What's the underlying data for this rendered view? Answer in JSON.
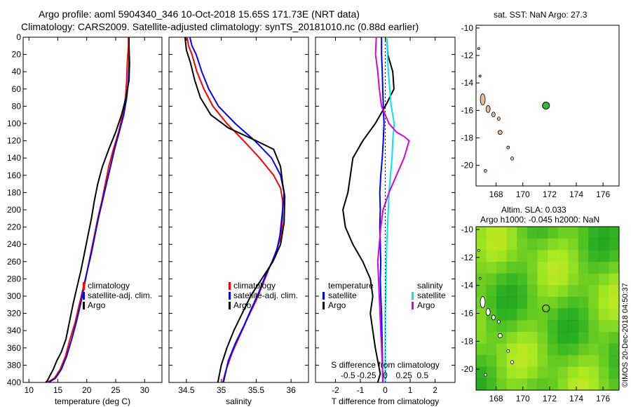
{
  "header": {
    "title_line1": "Argo profile: aoml 5904340_346 10-Oct-2018 15.65S 171.73E (NRT data)",
    "title_line2": "Climatology: CARS2009. Satellite-adjusted climatology: synTS_20181010.nc (0.88d earlier)"
  },
  "map_top": {
    "title": "sat. SST: NaN Argo: 27.3"
  },
  "map_bottom": {
    "title1": "Altim. SLA: 0.033",
    "title2": "Argo h1000: -0.045 h2000: NaN"
  },
  "watermark": "©IMOS 20-Dec-2018 04:50:37",
  "colors": {
    "climatology": "#ff0000",
    "satellite": "#0000ff",
    "argo": "#000000",
    "sat_sal": "#00e5ee",
    "clim_sal": "#dd00dd",
    "land": "#e8b898",
    "float_marker": "#33bb33"
  },
  "chart_data": [
    {
      "type": "line",
      "panel": "temperature",
      "xlabel": "temperature (deg C)",
      "xlim": [
        9,
        33
      ],
      "ylim": [
        400,
        0
      ],
      "xticks": [
        10,
        15,
        20,
        25,
        30
      ],
      "yticks": [
        0,
        20,
        40,
        60,
        80,
        100,
        120,
        140,
        160,
        180,
        200,
        220,
        240,
        260,
        280,
        300,
        320,
        340,
        360,
        380,
        400
      ],
      "legend": [
        "climatology",
        "satellite-adj. clim.",
        "Argo"
      ],
      "series": [
        {
          "name": "climatology",
          "x": [
            27.2,
            27.2,
            27.0,
            26.9,
            26.7,
            26.2,
            25.5,
            24.6,
            23.8,
            23.2,
            22.6,
            21.9,
            21.3,
            20.7,
            20.1,
            19.4,
            18.7,
            18.0,
            17.1,
            16.3,
            15.4,
            14.4,
            13.2
          ],
          "y": [
            0,
            10,
            30,
            50,
            70,
            90,
            110,
            130,
            150,
            170,
            190,
            210,
            230,
            250,
            270,
            290,
            310,
            330,
            350,
            370,
            385,
            395,
            400
          ]
        },
        {
          "name": "satellite",
          "x": [
            27.3,
            27.3,
            27.3,
            27.2,
            26.9,
            26.4,
            25.6,
            24.8,
            24.1,
            23.4,
            22.7,
            22.0,
            21.4,
            20.8,
            20.1,
            19.5,
            18.9,
            18.2,
            17.4,
            16.5,
            15.6,
            14.6,
            13.4
          ],
          "y": [
            0,
            10,
            30,
            50,
            70,
            90,
            110,
            130,
            150,
            170,
            190,
            210,
            230,
            250,
            270,
            290,
            310,
            330,
            350,
            370,
            385,
            395,
            400
          ]
        },
        {
          "name": "Argo",
          "x": [
            27.3,
            27.3,
            27.4,
            27.3,
            26.8,
            26.0,
            25.0,
            23.8,
            22.7,
            21.9,
            21.3,
            20.8,
            20.2,
            19.6,
            19.0,
            18.3,
            17.6,
            17.0,
            16.4,
            15.6,
            14.8,
            14.2,
            13.4,
            13.2,
            12.9
          ],
          "y": [
            0,
            10,
            30,
            50,
            70,
            90,
            110,
            130,
            150,
            170,
            190,
            210,
            230,
            250,
            270,
            290,
            310,
            330,
            350,
            365,
            375,
            385,
            395,
            398,
            400
          ]
        }
      ]
    },
    {
      "type": "line",
      "panel": "salinity",
      "xlabel": "salinity",
      "xlim": [
        34.25,
        36.25
      ],
      "ylim": [
        400,
        0
      ],
      "xticks": [
        34.5,
        35,
        35.5,
        36
      ],
      "tick_labels": [
        "34.5",
        "35",
        "35.5",
        "36"
      ],
      "legend": [
        "climatology",
        "satellite-adj. clim.",
        "Argo"
      ],
      "series": [
        {
          "name": "climatology",
          "x": [
            34.51,
            34.53,
            34.58,
            34.65,
            34.75,
            34.88,
            35.08,
            35.32,
            35.55,
            35.75,
            35.85,
            35.88,
            35.88,
            35.87,
            35.84,
            35.78,
            35.7,
            35.6,
            35.5,
            35.38,
            35.27,
            35.16,
            35.07,
            35.02
          ],
          "y": [
            0,
            10,
            20,
            40,
            60,
            80,
            100,
            120,
            140,
            160,
            175,
            190,
            205,
            220,
            235,
            250,
            265,
            285,
            305,
            325,
            345,
            365,
            385,
            400
          ]
        },
        {
          "name": "satellite",
          "x": [
            34.55,
            34.58,
            34.64,
            34.72,
            34.82,
            34.96,
            35.2,
            35.48,
            35.72,
            35.85,
            35.9,
            35.88,
            35.86,
            35.84,
            35.8,
            35.73,
            35.64,
            35.54,
            35.43,
            35.32,
            35.2,
            35.1,
            35.03
          ],
          "y": [
            0,
            10,
            20,
            40,
            60,
            80,
            100,
            120,
            140,
            160,
            180,
            200,
            215,
            230,
            245,
            260,
            275,
            295,
            315,
            335,
            355,
            375,
            400
          ]
        },
        {
          "name": "Argo",
          "x": [
            34.48,
            34.5,
            34.56,
            34.62,
            34.7,
            34.85,
            35.1,
            35.5,
            35.75,
            35.85,
            35.88,
            35.91,
            35.9,
            35.85,
            35.74,
            35.58,
            35.42,
            35.3,
            35.18,
            35.08,
            35.0,
            34.95
          ],
          "y": [
            0,
            15,
            30,
            50,
            70,
            90,
            105,
            120,
            130,
            150,
            170,
            185,
            215,
            240,
            260,
            280,
            300,
            320,
            340,
            360,
            380,
            400
          ]
        }
      ]
    },
    {
      "type": "line",
      "panel": "difference",
      "xlabel": "T difference from climatology",
      "top_label": "S difference from climatology",
      "xlim": [
        -2.8,
        2.8
      ],
      "ylim": [
        400,
        0
      ],
      "xticks": [
        -2,
        -1,
        0,
        1,
        2
      ],
      "s_ticks": [
        -0.5,
        -0.25,
        0,
        0.25,
        0.5
      ],
      "s_tick_labels": [
        "-0.5",
        "-0.25",
        "0",
        "0.25",
        "0.5"
      ],
      "legend_temperature": [
        "temperature",
        "satellite",
        "Argo"
      ],
      "legend_salinity": [
        "salinity",
        "satellite",
        "Argo"
      ],
      "series": [
        {
          "name": "T satellite",
          "x": [
            -0.15,
            -0.15,
            -0.12,
            -0.1,
            -0.08,
            -0.05,
            -0.08,
            -0.12,
            -0.18,
            -0.22,
            -0.2,
            -0.22,
            -0.2,
            -0.18,
            -0.2,
            -0.18,
            -0.15,
            -0.12,
            -0.1
          ],
          "y": [
            0,
            20,
            40,
            60,
            80,
            100,
            120,
            140,
            160,
            180,
            200,
            220,
            240,
            260,
            280,
            300,
            320,
            360,
            400
          ]
        },
        {
          "name": "T Argo",
          "x": [
            0.05,
            0.1,
            0.3,
            0.35,
            0.0,
            -0.4,
            -0.9,
            -1.3,
            -1.4,
            -1.5,
            -1.7,
            -1.6,
            -1.3,
            -0.9,
            -0.6,
            -0.5,
            -0.6,
            -0.5,
            -0.4,
            -0.3,
            -0.2,
            -0.3
          ],
          "y": [
            0,
            20,
            40,
            60,
            80,
            100,
            120,
            140,
            160,
            180,
            200,
            220,
            240,
            260,
            280,
            300,
            320,
            340,
            360,
            375,
            390,
            400
          ]
        },
        {
          "name": "S satellite",
          "x": [
            0.02,
            0.03,
            0.04,
            0.06,
            0.08,
            0.12,
            0.1,
            0.09,
            0.07,
            0.05,
            0.04,
            0.02,
            0.01,
            0.0,
            0.0,
            0.0
          ],
          "y": [
            0,
            20,
            40,
            60,
            80,
            100,
            120,
            140,
            160,
            180,
            200,
            240,
            280,
            320,
            360,
            400
          ]
        },
        {
          "name": "S Argo",
          "x": [
            -0.12,
            -0.13,
            -0.1,
            -0.08,
            -0.05,
            0.05,
            0.15,
            0.25,
            0.32,
            0.25,
            0.15,
            0.05,
            -0.03,
            -0.06,
            -0.1,
            -0.08,
            -0.07,
            -0.06,
            -0.05,
            -0.04,
            -0.03
          ],
          "y": [
            0,
            20,
            40,
            60,
            80,
            100,
            110,
            115,
            120,
            140,
            160,
            180,
            200,
            220,
            260,
            300,
            320,
            340,
            360,
            380,
            400
          ]
        }
      ]
    },
    {
      "type": "scatter",
      "panel": "map-sst",
      "xlim": [
        166.5,
        177.2
      ],
      "ylim": [
        -21.5,
        -9.8
      ],
      "xticks": [
        168,
        170,
        172,
        174,
        176
      ],
      "yticks": [
        -10,
        -12,
        -14,
        -16,
        -18,
        -20
      ],
      "float_position": {
        "lon": 171.73,
        "lat": -15.65
      }
    },
    {
      "type": "heatmap",
      "panel": "map-sla",
      "xlim": [
        166.5,
        177.2
      ],
      "ylim": [
        -21.5,
        -9.8
      ],
      "xticks": [
        168,
        170,
        172,
        174,
        176
      ],
      "yticks": [
        -10,
        -12,
        -14,
        -16,
        -18,
        -20
      ],
      "float_position": {
        "lon": 171.73,
        "lat": -15.65
      }
    }
  ]
}
